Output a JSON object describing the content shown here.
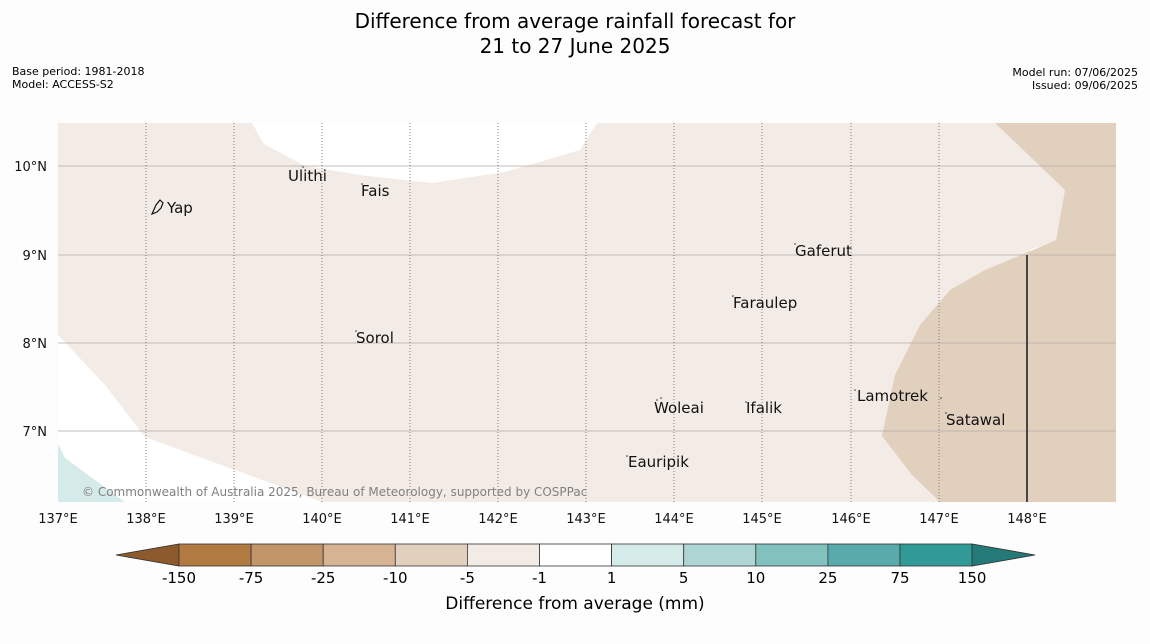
{
  "title": {
    "line1": "Difference from average rainfall forecast for",
    "line2": "21 to 27 June 2025"
  },
  "meta_left": {
    "base_period": "Base period: 1981-2018",
    "model": "Model: ACCESS-S2"
  },
  "meta_right": {
    "model_run": "Model run: 07/06/2025",
    "issued": "Issued: 09/06/2025"
  },
  "map": {
    "lat_labels": [
      "10°N",
      "9°N",
      "8°N",
      "7°N"
    ],
    "lon_labels": [
      "137°E",
      "138°E",
      "139°E",
      "140°E",
      "141°E",
      "142°E",
      "143°E",
      "144°E",
      "145°E",
      "146°E",
      "147°E",
      "148°E"
    ],
    "places": [
      "Yap",
      "Ulithi",
      "Fais",
      "Gaferut",
      "Faraulep",
      "Sorol",
      "Lamotrek",
      "Woleai",
      "Ifalik",
      "Satawal",
      "Eauripik"
    ],
    "copyright": "© Commonwealth of Australia 2025, Bureau of Meteorology, supported by COSPPac"
  },
  "colorbar": {
    "bins": [
      "-150",
      "-75",
      "-25",
      "-10",
      "-5",
      "-1",
      "1",
      "5",
      "10",
      "25",
      "75",
      "150"
    ],
    "colors": [
      "#8c5a2c",
      "#b07a41",
      "#c39669",
      "#d5b393",
      "#e2d0bf",
      "#f3ece6",
      "#ffffff",
      "#d5ebe9",
      "#acd5d4",
      "#81c1be",
      "#58abaa",
      "#319996",
      "#237a78"
    ],
    "title": "Difference from average (mm)"
  }
}
